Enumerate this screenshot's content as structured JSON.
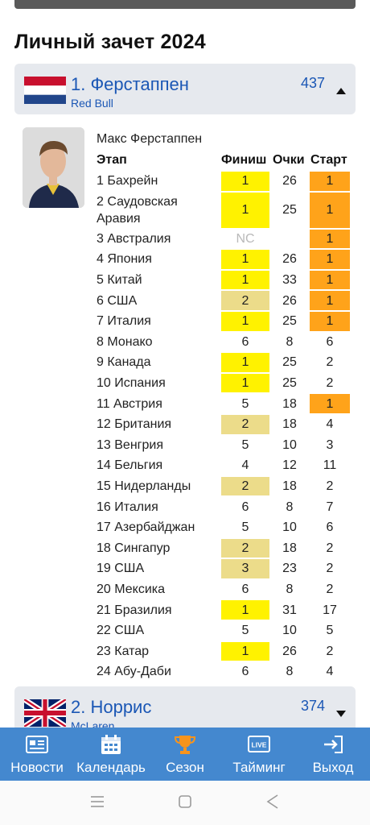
{
  "page_title": "Личный зачет 2024",
  "drivers": [
    {
      "position_name": "1. Ферстаппен",
      "team": "Red Bull",
      "points": "437"
    },
    {
      "position_name": "2. Норрис",
      "team": "McLaren",
      "points": "374"
    }
  ],
  "detail": {
    "full_name": "Макс Ферстаппен",
    "headers": {
      "stage": "Этап",
      "finish": "Финиш",
      "points": "Очки",
      "start": "Старт"
    },
    "rows": [
      {
        "stage": "1 Бахрейн",
        "finish": "1",
        "points": "26",
        "start": "1",
        "fin_hl": "yellow",
        "st_hl": "orange"
      },
      {
        "stage": "2 Саудовская Аравия",
        "stage_l1": "2 Саудовская",
        "stage_l2": "Аравия",
        "finish": "1",
        "points": "25",
        "start": "1",
        "fin_hl": "yellow",
        "st_hl": "orange",
        "tall": true
      },
      {
        "stage": "3 Австралия",
        "finish": "NC",
        "points": "",
        "start": "1",
        "fin_hl": "",
        "st_hl": "orange",
        "nc": true
      },
      {
        "stage": "4 Япония",
        "finish": "1",
        "points": "26",
        "start": "1",
        "fin_hl": "yellow",
        "st_hl": "orange"
      },
      {
        "stage": "5 Китай",
        "finish": "1",
        "points": "33",
        "start": "1",
        "fin_hl": "yellow",
        "st_hl": "orange"
      },
      {
        "stage": "6 США",
        "finish": "2",
        "points": "26",
        "start": "1",
        "fin_hl": "tan",
        "st_hl": "orange"
      },
      {
        "stage": "7 Италия",
        "finish": "1",
        "points": "25",
        "start": "1",
        "fin_hl": "yellow",
        "st_hl": "orange"
      },
      {
        "stage": "8 Монако",
        "finish": "6",
        "points": "8",
        "start": "6",
        "fin_hl": "",
        "st_hl": ""
      },
      {
        "stage": "9 Канада",
        "finish": "1",
        "points": "25",
        "start": "2",
        "fin_hl": "yellow",
        "st_hl": ""
      },
      {
        "stage": "10 Испания",
        "finish": "1",
        "points": "25",
        "start": "2",
        "fin_hl": "yellow",
        "st_hl": ""
      },
      {
        "stage": "11 Австрия",
        "finish": "5",
        "points": "18",
        "start": "1",
        "fin_hl": "",
        "st_hl": "orange"
      },
      {
        "stage": "12 Британия",
        "finish": "2",
        "points": "18",
        "start": "4",
        "fin_hl": "tan",
        "st_hl": ""
      },
      {
        "stage": "13 Венгрия",
        "finish": "5",
        "points": "10",
        "start": "3",
        "fin_hl": "",
        "st_hl": ""
      },
      {
        "stage": "14 Бельгия",
        "finish": "4",
        "points": "12",
        "start": "11",
        "fin_hl": "",
        "st_hl": ""
      },
      {
        "stage": "15 Нидерланды",
        "finish": "2",
        "points": "18",
        "start": "2",
        "fin_hl": "tan",
        "st_hl": ""
      },
      {
        "stage": "16 Италия",
        "finish": "6",
        "points": "8",
        "start": "7",
        "fin_hl": "",
        "st_hl": ""
      },
      {
        "stage": "17 Азербайджан",
        "finish": "5",
        "points": "10",
        "start": "6",
        "fin_hl": "",
        "st_hl": ""
      },
      {
        "stage": "18 Сингапур",
        "finish": "2",
        "points": "18",
        "start": "2",
        "fin_hl": "tan",
        "st_hl": ""
      },
      {
        "stage": "19 США",
        "finish": "3",
        "points": "23",
        "start": "2",
        "fin_hl": "tan",
        "st_hl": ""
      },
      {
        "stage": "20 Мексика",
        "finish": "6",
        "points": "8",
        "start": "2",
        "fin_hl": "",
        "st_hl": ""
      },
      {
        "stage": "21 Бразилия",
        "finish": "1",
        "points": "31",
        "start": "17",
        "fin_hl": "yellow",
        "st_hl": ""
      },
      {
        "stage": "22 США",
        "finish": "5",
        "points": "10",
        "start": "5",
        "fin_hl": "",
        "st_hl": ""
      },
      {
        "stage": "23 Катар",
        "finish": "1",
        "points": "26",
        "start": "2",
        "fin_hl": "yellow",
        "st_hl": ""
      },
      {
        "stage": "24 Абу-Даби",
        "finish": "6",
        "points": "8",
        "start": "4",
        "fin_hl": "",
        "st_hl": ""
      }
    ]
  },
  "colors": {
    "yellow": "#fff200",
    "tan": "#ecdc8a",
    "orange": "#ffa31a",
    "accent": "#1b57b5",
    "nav": "#4488cf"
  },
  "nav": [
    {
      "label": "Новости",
      "icon": "news-icon"
    },
    {
      "label": "Календарь",
      "icon": "calendar-icon"
    },
    {
      "label": "Сезон",
      "icon": "trophy-icon"
    },
    {
      "label": "Тайминг",
      "icon": "live-icon",
      "icon_text": "LIVE"
    },
    {
      "label": "Выход",
      "icon": "exit-icon"
    }
  ],
  "system_nav": [
    "menu-icon",
    "home-icon",
    "back-icon"
  ]
}
